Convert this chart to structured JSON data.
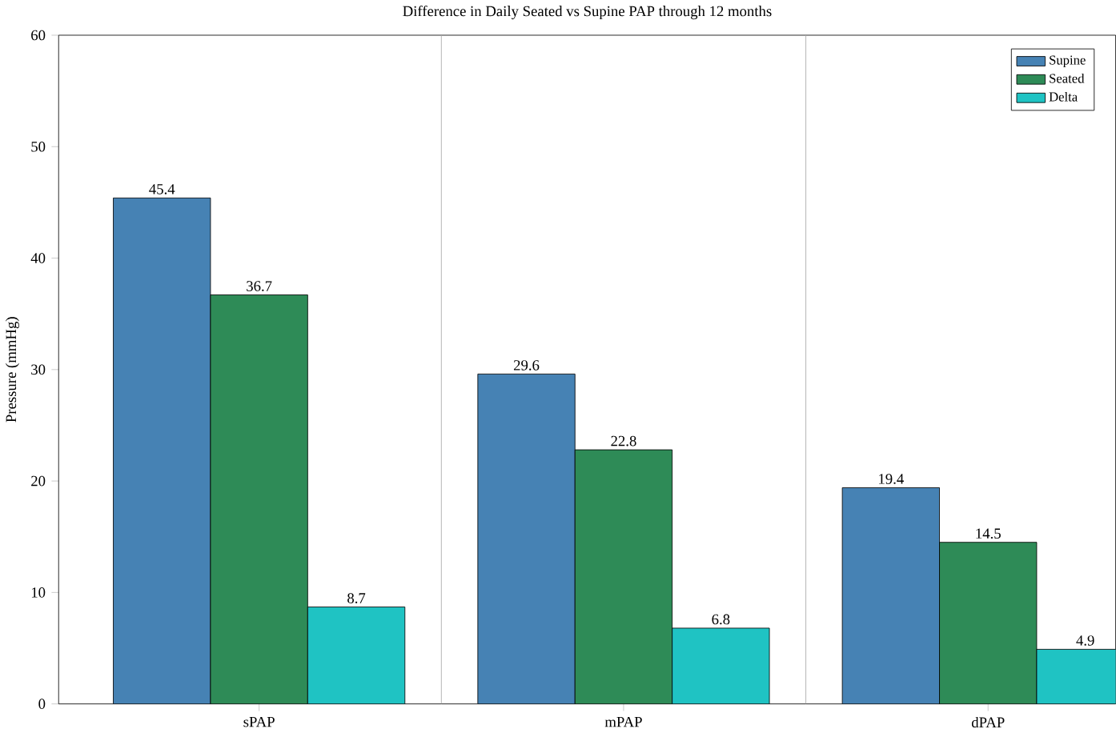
{
  "chart_data": {
    "type": "bar",
    "title": "Difference in Daily Seated vs Supine PAP through 12 months",
    "ylabel": "Pressure (mmHg)",
    "categories": [
      "sPAP",
      "mPAP",
      "dPAP"
    ],
    "series": [
      {
        "name": "Supine",
        "color": "#4682b4",
        "values": [
          45.4,
          29.6,
          19.4
        ]
      },
      {
        "name": "Seated",
        "color": "#2e8b57",
        "values": [
          36.7,
          22.8,
          14.5
        ]
      },
      {
        "name": "Delta",
        "color": "#1fc3c3",
        "values": [
          8.7,
          6.8,
          4.9
        ]
      }
    ],
    "ylim": [
      0,
      60
    ],
    "yticks": [
      0,
      10,
      20,
      30,
      40,
      50,
      60
    ],
    "data_labels": true,
    "legend": "top right"
  }
}
